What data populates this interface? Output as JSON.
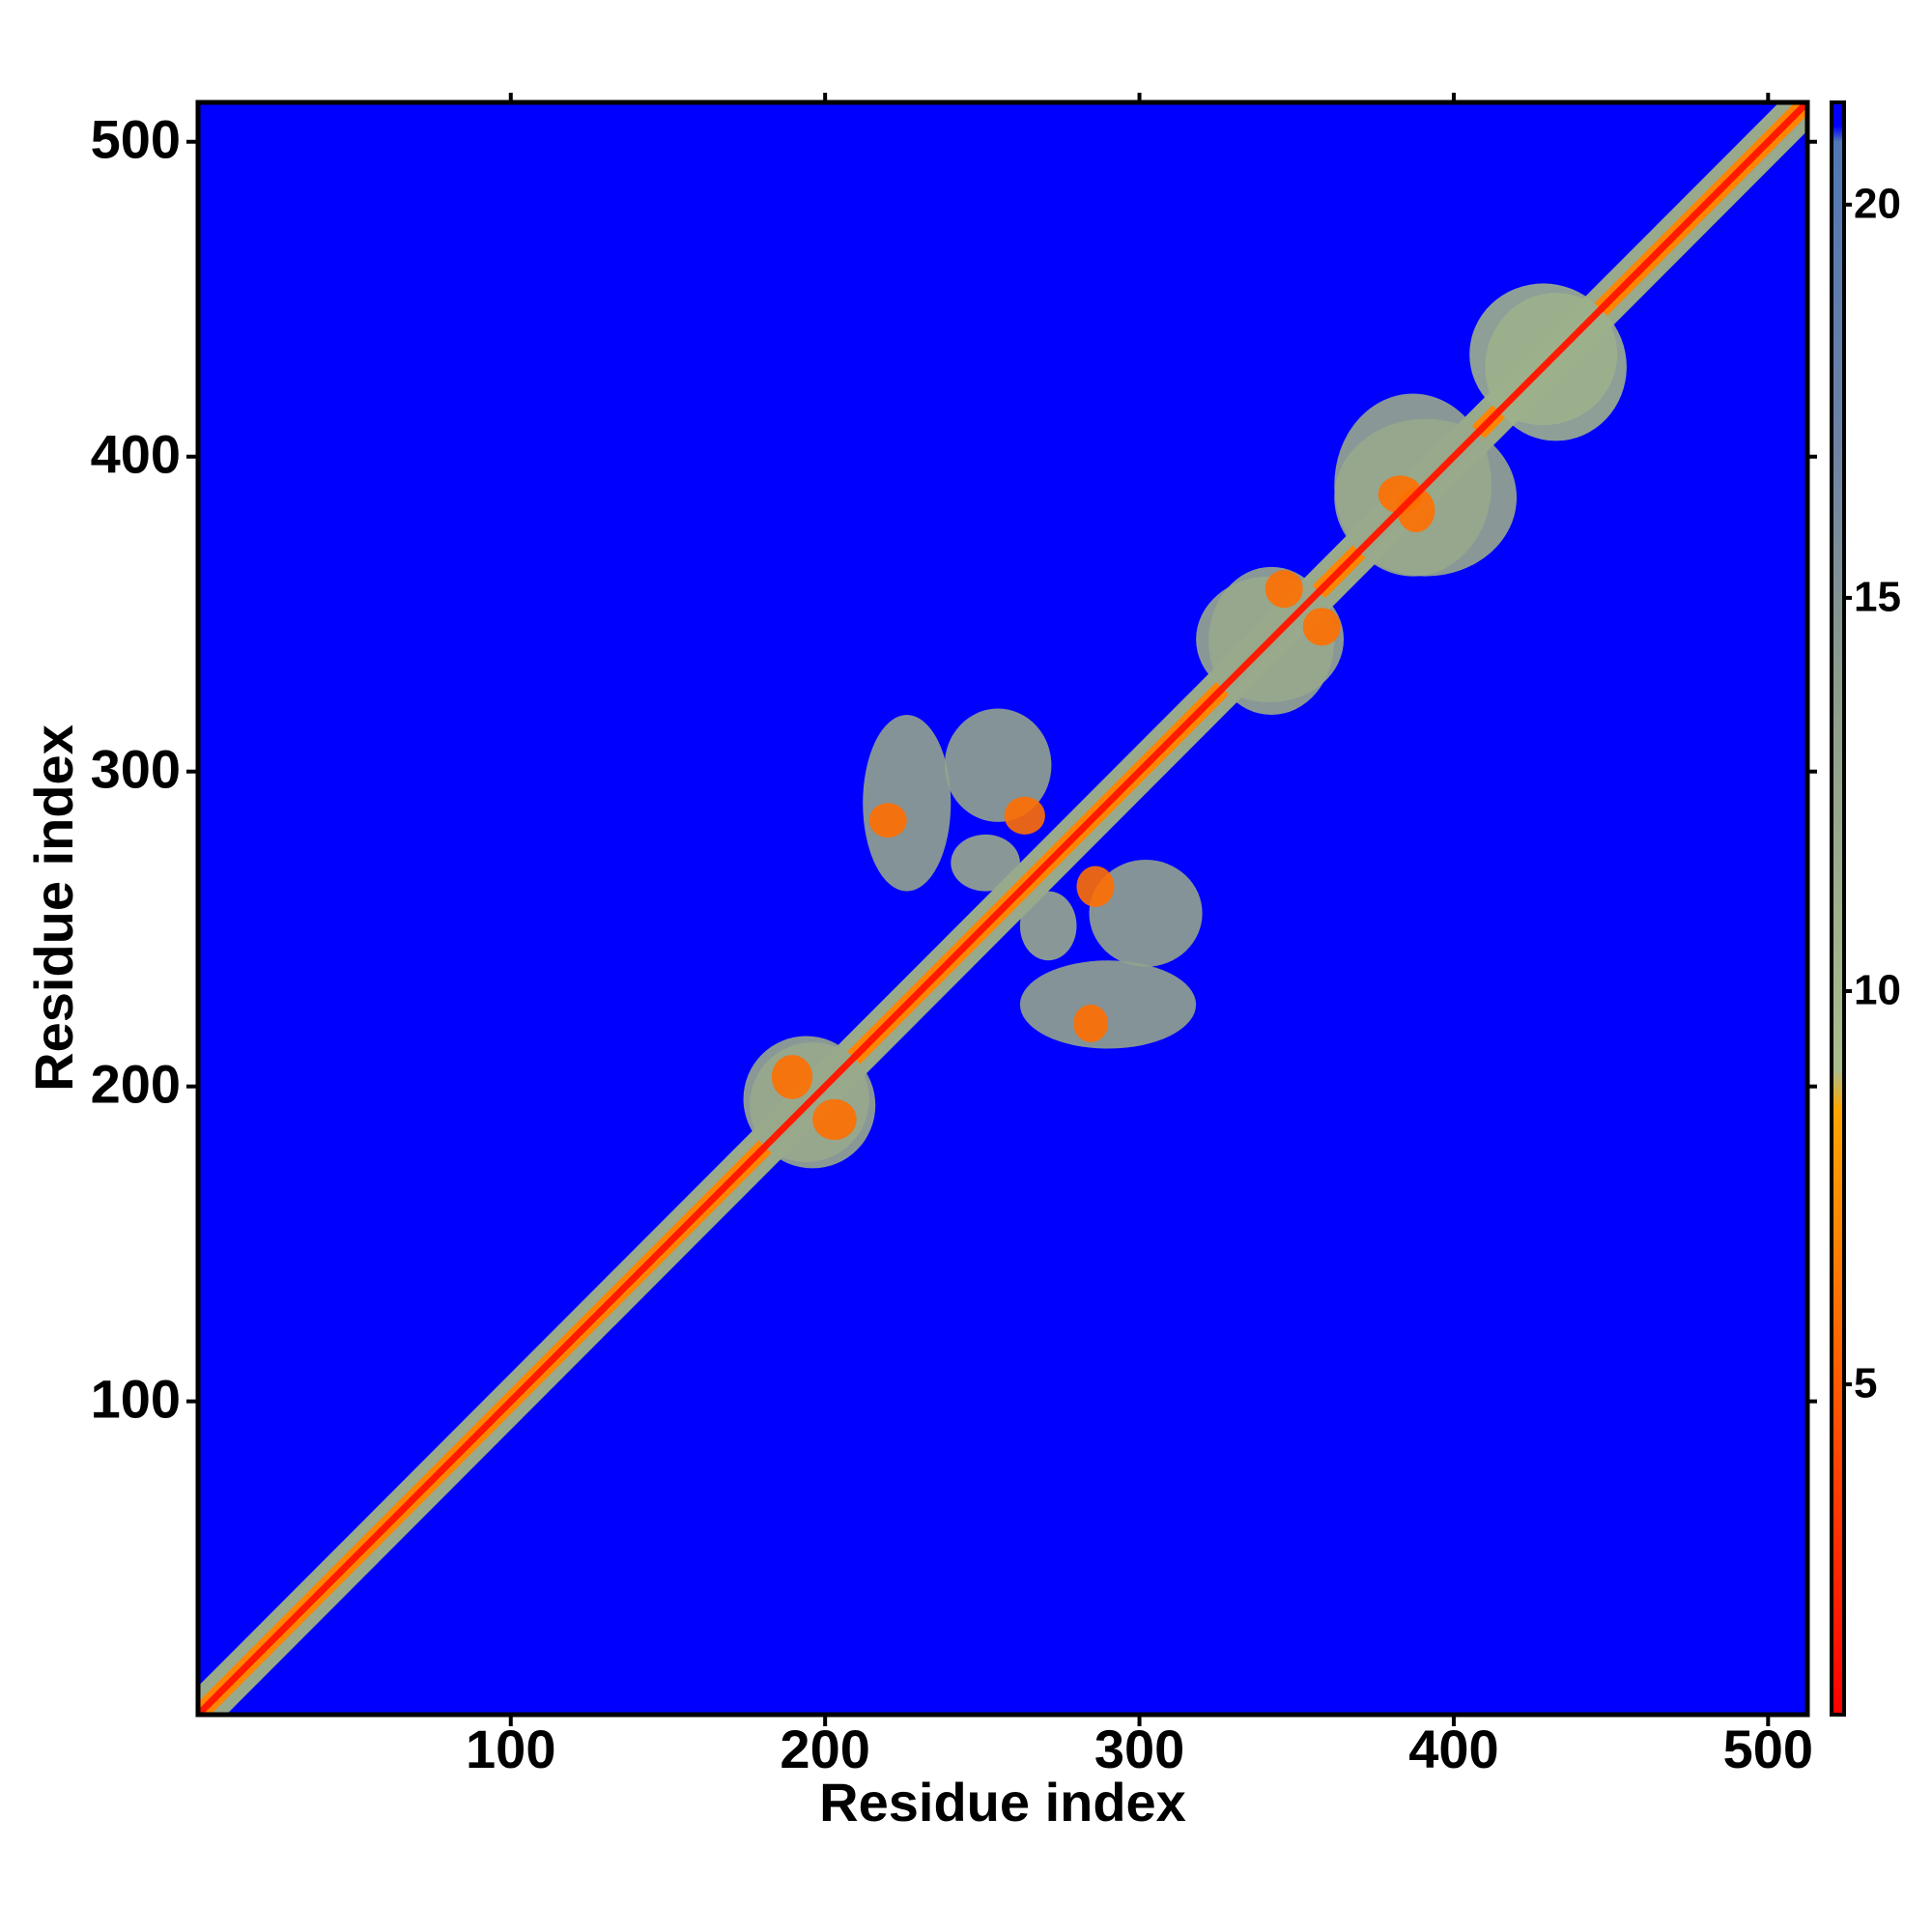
{
  "chart_data": {
    "type": "heatmap",
    "xlabel": "Residue index",
    "ylabel": "Residue index",
    "xlim": [
      0.5,
      512.5
    ],
    "ylim": [
      0.5,
      512.5
    ],
    "xticks": [
      100,
      200,
      300,
      400,
      500
    ],
    "yticks": [
      100,
      200,
      300,
      400,
      500
    ],
    "clim": [
      0.8,
      21.3
    ],
    "cticks": [
      5,
      10,
      15,
      20
    ],
    "colormap": [
      {
        "value": 0.8,
        "color": "#ff0000"
      },
      {
        "value": 5,
        "color": "#ff5a00"
      },
      {
        "value": 8.5,
        "color": "#ffa500"
      },
      {
        "value": 9,
        "color": "#a9bd8c"
      },
      {
        "value": 14,
        "color": "#8c9c8c"
      },
      {
        "value": 17,
        "color": "#6d82a6"
      },
      {
        "value": 20.8,
        "color": "#4f78b4"
      },
      {
        "value": 21,
        "color": "#0000ff"
      }
    ],
    "background": 21,
    "symmetric": true,
    "patches": [
      {
        "x": [
          174,
          214
        ],
        "y": [
          176,
          216
        ],
        "value": 12
      },
      {
        "x": [
          212,
          240
        ],
        "y": [
          262,
          318
        ],
        "value": 13
      },
      {
        "x": [
          238,
          272
        ],
        "y": [
          284,
          320
        ],
        "value": 13
      },
      {
        "x": [
          240,
          262
        ],
        "y": [
          262,
          280
        ],
        "value": 12
      },
      {
        "x": [
          318,
          365
        ],
        "y": [
          322,
          362
        ],
        "value": 12
      },
      {
        "x": [
          362,
          420
        ],
        "y": [
          362,
          412
        ],
        "value": 12
      },
      {
        "x": [
          405,
          452
        ],
        "y": [
          410,
          455
        ],
        "value": 11
      },
      {
        "x": [
          183,
          196
        ],
        "y": [
          196,
          210
        ],
        "value": 6
      },
      {
        "x": [
          214,
          226
        ],
        "y": [
          279,
          290
        ],
        "value": 6
      },
      {
        "x": [
          257,
          270
        ],
        "y": [
          280,
          292
        ],
        "value": 6
      },
      {
        "x": [
          340,
          352
        ],
        "y": [
          352,
          364
        ],
        "value": 6
      },
      {
        "x": [
          376,
          390
        ],
        "y": [
          382,
          394
        ],
        "value": 6
      }
    ],
    "diagonal_bands": [
      {
        "halfwidth": 9,
        "value": 12
      },
      {
        "halfwidth": 4,
        "value": 7
      },
      {
        "halfwidth": 1.5,
        "value": 2
      }
    ]
  }
}
